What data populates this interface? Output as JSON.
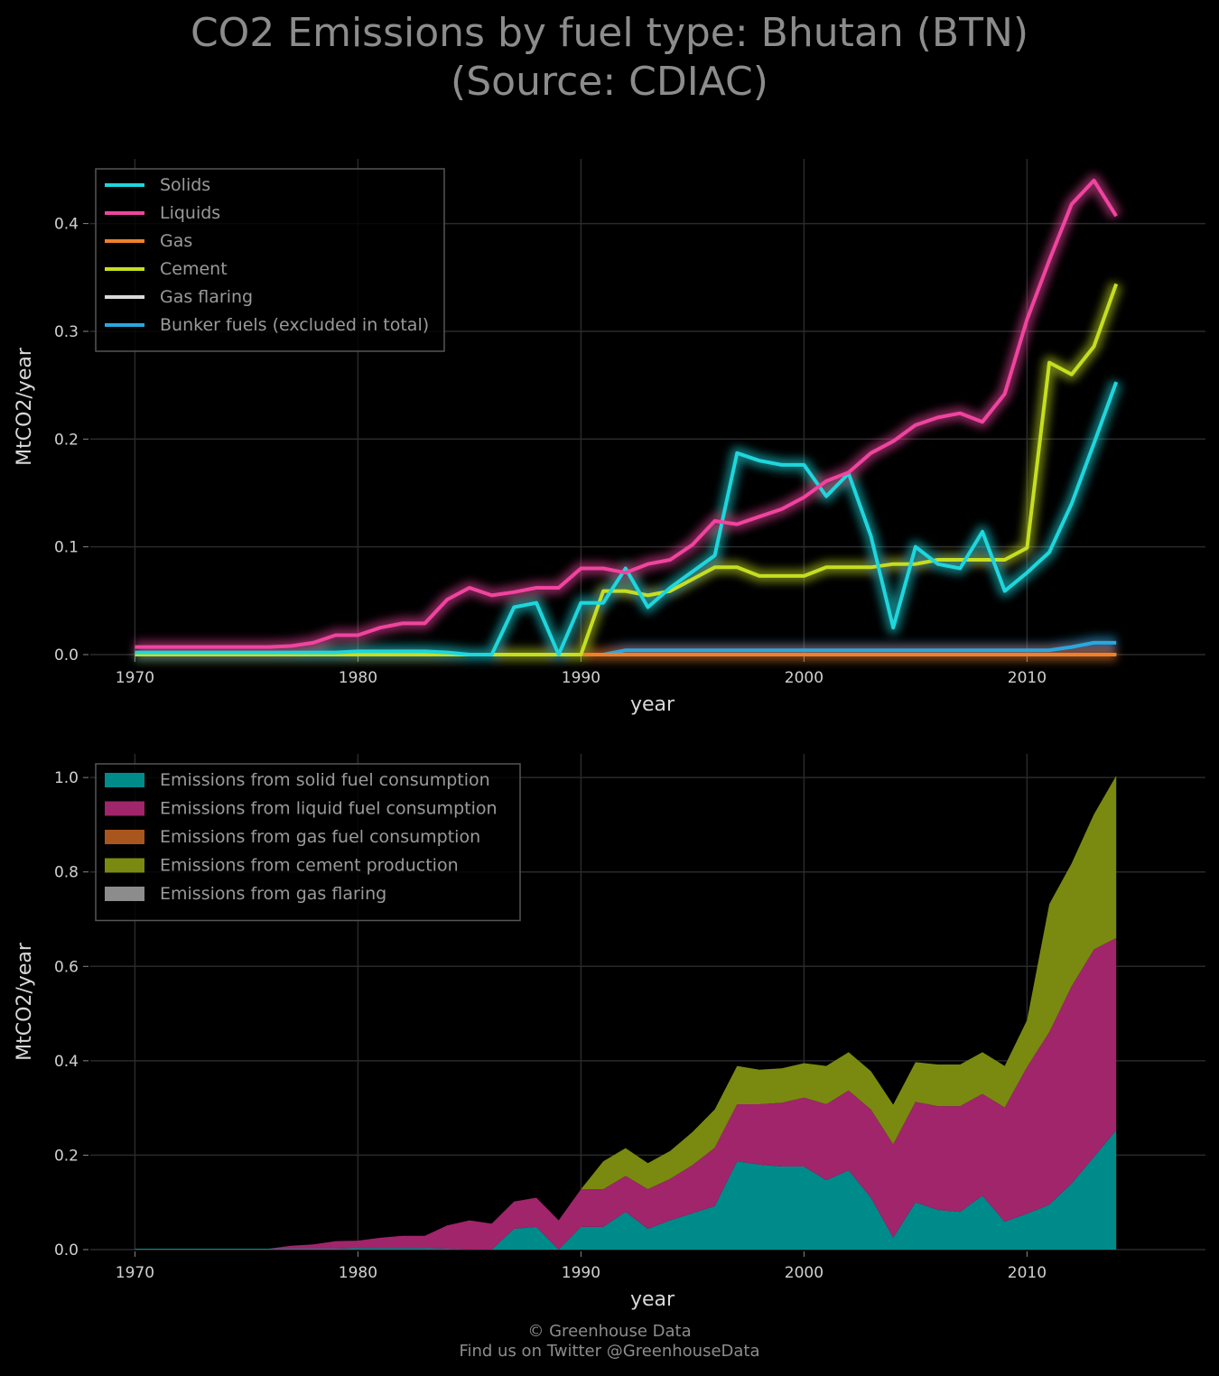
{
  "title_line1": "CO2 Emissions by fuel type: Bhutan (BTN)",
  "title_line2": "(Source: CDIAC)",
  "footer_line1": "© Greenhouse Data",
  "footer_line2": "Find us on Twitter @GreenhouseData",
  "chart_data": [
    {
      "type": "line",
      "xlabel": "year",
      "ylabel": "MtCO2/year",
      "xlim": [
        1968,
        2018
      ],
      "ylim": [
        0,
        0.46
      ],
      "xticks": [
        1970,
        1980,
        1990,
        2000,
        2010
      ],
      "yticks": [
        0.0,
        0.1,
        0.2,
        0.3,
        0.4
      ],
      "ytick_labels": [
        "0.0",
        "0.1",
        "0.2",
        "0.3",
        "0.4"
      ],
      "grid": true,
      "legend_position": "top-left",
      "x": [
        1970,
        1971,
        1972,
        1973,
        1974,
        1975,
        1976,
        1977,
        1978,
        1979,
        1980,
        1981,
        1982,
        1983,
        1984,
        1985,
        1986,
        1987,
        1988,
        1989,
        1990,
        1991,
        1992,
        1993,
        1994,
        1995,
        1996,
        1997,
        1998,
        1999,
        2000,
        2001,
        2002,
        2003,
        2004,
        2005,
        2006,
        2007,
        2008,
        2009,
        2010,
        2011,
        2012,
        2013,
        2014
      ],
      "series": [
        {
          "name": "Solids",
          "color": "#1fd6dc",
          "values": [
            0.002,
            0.002,
            0.002,
            0.002,
            0.002,
            0.002,
            0.002,
            0.002,
            0.002,
            0.002,
            0.003,
            0.003,
            0.003,
            0.003,
            0.002,
            0.0,
            0.0,
            0.044,
            0.048,
            0.0,
            0.048,
            0.048,
            0.08,
            0.044,
            0.062,
            0.077,
            0.092,
            0.187,
            0.18,
            0.176,
            0.176,
            0.147,
            0.168,
            0.11,
            0.025,
            0.1,
            0.084,
            0.08,
            0.114,
            0.059,
            0.076,
            0.095,
            0.14,
            0.196,
            0.253
          ]
        },
        {
          "name": "Liquids",
          "color": "#f0449f",
          "values": [
            0.007,
            0.007,
            0.007,
            0.007,
            0.007,
            0.007,
            0.007,
            0.008,
            0.011,
            0.018,
            0.018,
            0.025,
            0.029,
            0.029,
            0.051,
            0.062,
            0.055,
            0.058,
            0.062,
            0.062,
            0.08,
            0.08,
            0.076,
            0.084,
            0.088,
            0.102,
            0.124,
            0.121,
            0.128,
            0.135,
            0.146,
            0.161,
            0.169,
            0.187,
            0.198,
            0.213,
            0.22,
            0.224,
            0.216,
            0.242,
            0.311,
            0.366,
            0.418,
            0.44,
            0.407
          ]
        },
        {
          "name": "Gas",
          "color": "#f07f2a",
          "values": [
            0,
            0,
            0,
            0,
            0,
            0,
            0,
            0,
            0,
            0,
            0,
            0,
            0,
            0,
            0,
            0,
            0,
            0,
            0,
            0,
            0,
            0,
            0,
            0,
            0,
            0,
            0,
            0,
            0,
            0,
            0,
            0,
            0,
            0,
            0,
            0,
            0,
            0,
            0,
            0,
            0,
            0,
            0,
            0,
            0
          ]
        },
        {
          "name": "Cement",
          "color": "#c6de21",
          "values": [
            0,
            0,
            0,
            0,
            0,
            0,
            0,
            0,
            0,
            0,
            0,
            0,
            0,
            0,
            0,
            0,
            0,
            0,
            0,
            0,
            0,
            0.059,
            0.059,
            0.055,
            0.059,
            0.07,
            0.081,
            0.081,
            0.073,
            0.073,
            0.073,
            0.081,
            0.081,
            0.081,
            0.084,
            0.084,
            0.088,
            0.088,
            0.088,
            0.088,
            0.099,
            0.271,
            0.26,
            0.286,
            0.344
          ]
        },
        {
          "name": "Gas flaring",
          "color": "#d9d9d9",
          "values": [
            0,
            0,
            0,
            0,
            0,
            0,
            0,
            0,
            0,
            0,
            0,
            0,
            0,
            0,
            0,
            0,
            0,
            0,
            0,
            0,
            0,
            0,
            0,
            0,
            0,
            0,
            0,
            0,
            0,
            0,
            0,
            0,
            0,
            0,
            0,
            0,
            0,
            0,
            0,
            0,
            0,
            0,
            0,
            0,
            0
          ]
        },
        {
          "name": "Bunker fuels (excluded in total)",
          "color": "#2aa7e0",
          "values": [
            0,
            0,
            0,
            0,
            0,
            0,
            0,
            0,
            0,
            0,
            0,
            0,
            0,
            0,
            0,
            0,
            0,
            0,
            0,
            0,
            0,
            0,
            0.004,
            0.004,
            0.004,
            0.004,
            0.004,
            0.004,
            0.004,
            0.004,
            0.004,
            0.004,
            0.004,
            0.004,
            0.004,
            0.004,
            0.004,
            0.004,
            0.004,
            0.004,
            0.004,
            0.004,
            0.007,
            0.011,
            0.011
          ]
        }
      ]
    },
    {
      "type": "area",
      "stacked": true,
      "xlabel": "year",
      "ylabel": "MtCO2/year",
      "xlim": [
        1968,
        2018
      ],
      "ylim": [
        0,
        1.05
      ],
      "xticks": [
        1970,
        1980,
        1990,
        2000,
        2010
      ],
      "yticks": [
        0.0,
        0.2,
        0.4,
        0.6,
        0.8,
        1.0
      ],
      "ytick_labels": [
        "0.0",
        "0.2",
        "0.4",
        "0.6",
        "0.8",
        "1.0"
      ],
      "grid": true,
      "legend_position": "top-left",
      "x": [
        1970,
        1971,
        1972,
        1973,
        1974,
        1975,
        1976,
        1977,
        1978,
        1979,
        1980,
        1981,
        1982,
        1983,
        1984,
        1985,
        1986,
        1987,
        1988,
        1989,
        1990,
        1991,
        1992,
        1993,
        1994,
        1995,
        1996,
        1997,
        1998,
        1999,
        2000,
        2001,
        2002,
        2003,
        2004,
        2005,
        2006,
        2007,
        2008,
        2009,
        2010,
        2011,
        2012,
        2013,
        2014
      ],
      "series": [
        {
          "name": "Emissions from solid fuel consumption",
          "color": "#008b8b",
          "values": [
            0.002,
            0.002,
            0.002,
            0.002,
            0.002,
            0.002,
            0.002,
            0.002,
            0.002,
            0.002,
            0.003,
            0.003,
            0.003,
            0.003,
            0.002,
            0.0,
            0.0,
            0.044,
            0.048,
            0.0,
            0.048,
            0.048,
            0.08,
            0.044,
            0.062,
            0.077,
            0.092,
            0.187,
            0.18,
            0.176,
            0.176,
            0.147,
            0.168,
            0.11,
            0.025,
            0.1,
            0.084,
            0.08,
            0.114,
            0.059,
            0.076,
            0.095,
            0.14,
            0.196,
            0.253
          ]
        },
        {
          "name": "Emissions from liquid fuel consumption",
          "color": "#a0256a",
          "values": [
            0.0,
            0.0,
            0.0,
            0.0,
            0.0,
            0.0,
            0.0,
            0.006,
            0.009,
            0.016,
            0.016,
            0.022,
            0.026,
            0.026,
            0.049,
            0.062,
            0.055,
            0.058,
            0.062,
            0.062,
            0.08,
            0.08,
            0.076,
            0.084,
            0.088,
            0.102,
            0.124,
            0.121,
            0.128,
            0.135,
            0.146,
            0.161,
            0.169,
            0.187,
            0.198,
            0.213,
            0.22,
            0.224,
            0.216,
            0.242,
            0.311,
            0.366,
            0.418,
            0.44,
            0.407
          ]
        },
        {
          "name": "Emissions from gas fuel consumption",
          "color": "#a9561e",
          "values": [
            0,
            0,
            0,
            0,
            0,
            0,
            0,
            0,
            0,
            0,
            0,
            0,
            0,
            0,
            0,
            0,
            0,
            0,
            0,
            0,
            0,
            0,
            0,
            0,
            0,
            0,
            0,
            0,
            0,
            0,
            0,
            0,
            0,
            0,
            0,
            0,
            0,
            0,
            0,
            0,
            0,
            0,
            0,
            0,
            0
          ]
        },
        {
          "name": "Emissions from cement production",
          "color": "#7a8a10",
          "values": [
            0,
            0,
            0,
            0,
            0,
            0,
            0,
            0,
            0,
            0,
            0,
            0,
            0,
            0,
            0,
            0,
            0,
            0,
            0,
            0,
            0,
            0.059,
            0.059,
            0.055,
            0.059,
            0.07,
            0.081,
            0.081,
            0.073,
            0.073,
            0.073,
            0.081,
            0.081,
            0.081,
            0.084,
            0.084,
            0.088,
            0.088,
            0.088,
            0.088,
            0.099,
            0.271,
            0.26,
            0.286,
            0.344
          ]
        },
        {
          "name": "Emissions from gas flaring",
          "color": "#8c8c8c",
          "values": [
            0,
            0,
            0,
            0,
            0,
            0,
            0,
            0,
            0,
            0,
            0,
            0,
            0,
            0,
            0,
            0,
            0,
            0,
            0,
            0,
            0,
            0,
            0,
            0,
            0,
            0,
            0,
            0,
            0,
            0,
            0,
            0,
            0,
            0,
            0,
            0,
            0,
            0,
            0,
            0,
            0,
            0,
            0,
            0,
            0
          ]
        }
      ]
    }
  ]
}
